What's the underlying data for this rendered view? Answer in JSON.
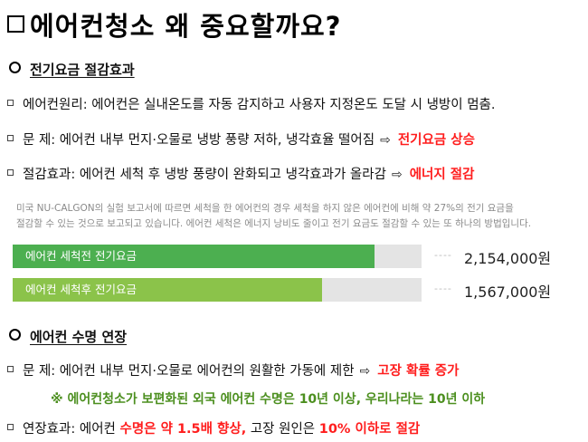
{
  "title": "에어컨청소 왜 중요할까요?",
  "section1": {
    "heading": "전기요금 절감효과",
    "line1": {
      "label": "에어컨원리:",
      "text": "에어컨은 실내온도를 자동 감지하고 사용자 지정온도 도달 시 냉방이 멈춤."
    },
    "line2": {
      "label": "문 제:",
      "text": "에어컨 내부 먼지·오물로 냉방 풍량 저하, 냉각효율 떨어짐",
      "result": "전기요금 상승"
    },
    "line3": {
      "label": "절감효과:",
      "text": "에어컨 세척 후 냉방 풍량이 완화되고 냉각효과가 올라감",
      "result": "에너지 절감"
    }
  },
  "panel": {
    "text_line1": "미국 NU-CALGON의 실험 보고서에 따르면 세척을 한 에어컨의 경우 세척을 하지 않은 에어컨에 비해 약 27%의 전기 요금을",
    "text_line2": "절감할 수 있는 것으로 보고되고 있습니다. 에어컨 세척은 에너지 낭비도 줄이고 전기 요금도 절감할 수 있는 또 하나의 방법입니다.",
    "bars": [
      {
        "label": "에어컨 세척전 전기요금",
        "amount": "2,154,000원",
        "value": 2154000,
        "color": "#4caf50"
      },
      {
        "label": "에어컨 세척후 전기요금",
        "amount": "1,567,000원",
        "value": 1567000,
        "color": "#8bc34a"
      }
    ],
    "dashes": "----"
  },
  "section2": {
    "heading": "에어컨 수명 연장",
    "line1": {
      "label": "문 제:",
      "text": "에어컨 내부 먼지·오물로 에어컨의 원활한 가동에 제한",
      "result": "고장 확률 증가"
    },
    "note": "※ 에어컨청소가 보편화된 외국 에어컨 수명은 10년 이상, 우리나라는 10년 이하",
    "line2": {
      "label": "연장효과:",
      "text_a": "에어컨",
      "red_a": "수명은 약 1.5배 향상,",
      "text_b": "고장 원인은",
      "red_b": "10% 이하로 절감"
    }
  }
}
